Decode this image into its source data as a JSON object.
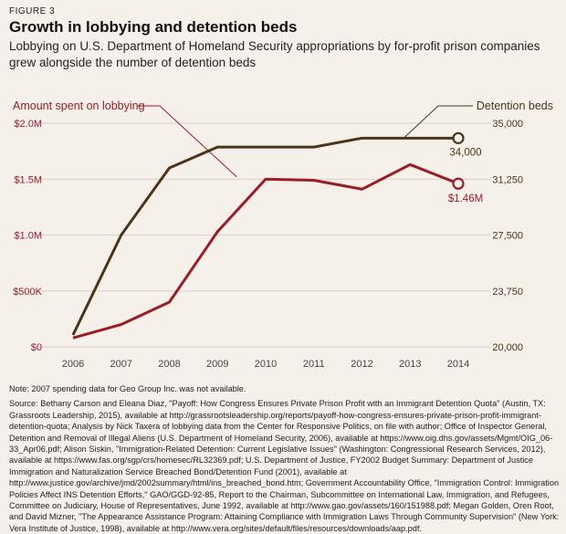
{
  "figure_label": "FIGURE 3",
  "title": "Growth in lobbying and detention beds",
  "subtitle": "Lobbying on U.S. Department of Homeland Security appropriations by for-profit prison companies grew alongside the number of detention beds",
  "note": "Note: 2007 spending data for Geo Group Inc. was not available.",
  "sources": "Source: Bethany Carson and Eleana Diaz, \"Payoff: How Congress Ensures Private Prison Profit with an Immigrant Detention Quota\" (Austin, TX: Grassroots Leadership, 2015), available at http://grassrootsleadership.org/reports/payoff-how-congress-ensures-private-prison-profit-immigrant-detention-quota; Analysis by Nick Taxera of lobbying data from the Center for Responsive Politics, on file with author; Office of Inspector General, Detention and Removal of Illegal Aliens (U.S. Department of Homeland Security, 2006), available at https://www.oig.dhs.gov/assets/Mgmt/OIG_06-33_Apr06.pdf; Alison Siskin, \"Immigration-Related Detention: Current Legislative Issues\" (Washington: Congressional Research Services, 2012), available at https://www.fas.org/sgp/crs/homesec/RL32369.pdf; U.S. Department of Justice, FY2002 Budget Summary: Department of Justice Immigration and Naturalization Service Breached Bond/Detention Fund (2001), available at http://www.justice.gov/archive/jmd/2002summary/html/ins_breached_bond.htm; Government Accountability Office, \"Immigration Control: Immigration Policies Affect INS Detention Efforts,\" GAO/GGD-92-85, Report to the Chairman, Subcommittee on International Law, Immigration, and Refugees, Committee on Judiciary, House of Representatives, June 1992, available at http://www.gao.gov/assets/160/151988.pdf; Megan Golden, Oren Root, and David Mizner, \"The Appearance Assistance Program: Attaining Compliance with Immigration Laws Through Community Supervision\" (New York: Vera Institute of Justice, 1998), available at http://www.vera.org/sites/default/files/resources/downloads/aap.pdf.",
  "colors": {
    "lobbying": "#9b1c23",
    "beds": "#4b3418",
    "axis_text": "#444444",
    "grid": "#d6d0c6",
    "bg": "#f5f1ea"
  },
  "chart_data": {
    "type": "line",
    "x": [
      2006,
      2007,
      2008,
      2009,
      2010,
      2011,
      2012,
      2013,
      2014
    ],
    "series": [
      {
        "name": "Amount spent on lobbying",
        "axis": "left",
        "values": [
          0.08,
          0.2,
          0.4,
          1.03,
          1.5,
          1.49,
          1.41,
          1.63,
          1.46
        ],
        "end_label": "$1.46M"
      },
      {
        "name": "Detention beds",
        "axis": "right",
        "values": [
          20800,
          27500,
          32000,
          33400,
          33400,
          33400,
          34000,
          34000,
          34000
        ],
        "end_label": "34,000"
      }
    ],
    "y_left": {
      "ticks": [
        0,
        0.5,
        1.0,
        1.5,
        2.0
      ],
      "tick_labels": [
        "$0",
        "$500K",
        "$1.0M",
        "$1.5M",
        "$2.0M"
      ],
      "lim": [
        0,
        2.0
      ]
    },
    "y_right": {
      "ticks": [
        20000,
        23750,
        27500,
        31250,
        35000
      ],
      "tick_labels": [
        "20,000",
        "23,750",
        "27,500",
        "31,250",
        "35,000"
      ],
      "lim": [
        20000,
        35000
      ]
    },
    "grid": true,
    "legend": "callouts at top-left and top-right"
  }
}
